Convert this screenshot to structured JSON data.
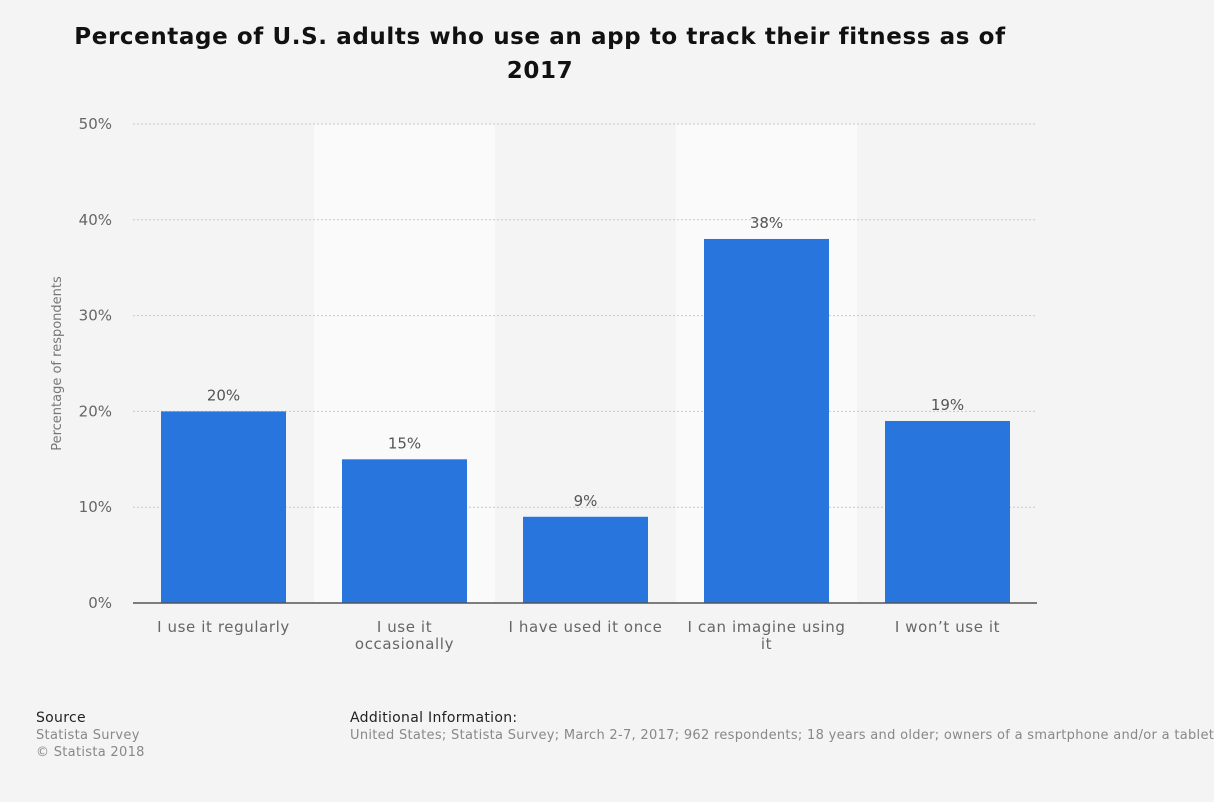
{
  "chart_data": {
    "type": "bar",
    "title": "Percentage of U.S. adults who use an app to track their fitness as of 2017",
    "ylabel": "Percentage of respondents",
    "xlabel": "",
    "categories": [
      "I use it regularly",
      "I use it occasionally",
      "I have used it once",
      "I can imagine using it",
      "I won’t use it"
    ],
    "values": [
      20,
      15,
      9,
      38,
      19
    ],
    "value_labels": [
      "20%",
      "15%",
      "9%",
      "38%",
      "19%"
    ],
    "ylim": [
      0,
      50
    ],
    "yticks": [
      0,
      10,
      20,
      30,
      40,
      50
    ],
    "ytick_labels": [
      "0%",
      "10%",
      "20%",
      "30%",
      "40%",
      "50%"
    ],
    "grid": true,
    "legend": "none",
    "bar_color": "#2775dd"
  },
  "footer": {
    "source_heading": "Source",
    "source_lines": [
      "Statista Survey",
      "© Statista 2018"
    ],
    "info_heading": "Additional Information:",
    "info_text": "United States; Statista Survey; March 2-7, 2017; 962 respondents; 18 years and older; owners of a smartphone and/or a tablet"
  },
  "colors": {
    "background": "#f4f4f4",
    "band": "#fafafa",
    "grid": "#c8c8c8",
    "axis": "#555555",
    "tick_text": "#666666",
    "label_text": "#555555"
  }
}
